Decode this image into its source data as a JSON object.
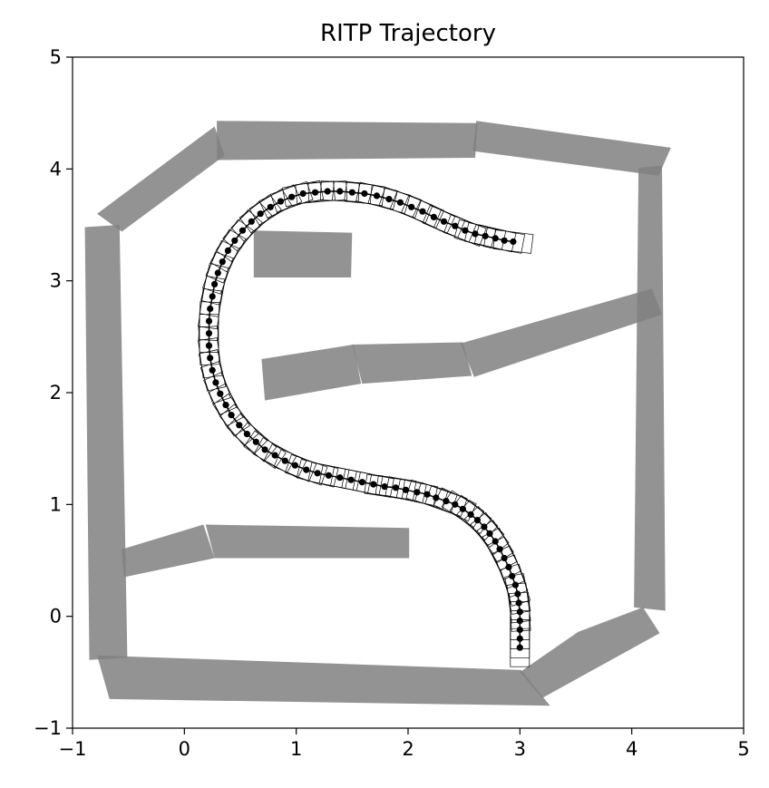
{
  "chart_data": {
    "type": "scatter",
    "title": "RITP Trajectory",
    "xlabel": "",
    "ylabel": "",
    "xlim": [
      -1,
      5
    ],
    "ylim": [
      -1,
      5
    ],
    "x_ticks": [
      "−1",
      "0",
      "1",
      "2",
      "3",
      "4",
      "5"
    ],
    "y_ticks": [
      "−1",
      "0",
      "1",
      "2",
      "3",
      "4",
      "5"
    ],
    "grid": false,
    "legend": "none",
    "obstacle_color": "#808080",
    "obstacles": [
      [
        [
          -0.89,
          3.48
        ],
        [
          -0.58,
          3.5
        ],
        [
          -0.51,
          -0.37
        ],
        [
          -0.85,
          -0.39
        ]
      ],
      [
        [
          -0.78,
          -0.35
        ],
        [
          3.01,
          -0.48
        ],
        [
          3.27,
          -0.8
        ],
        [
          -0.67,
          -0.74
        ]
      ],
      [
        [
          -0.78,
          3.6
        ],
        [
          0.27,
          4.38
        ],
        [
          0.36,
          4.12
        ],
        [
          -0.56,
          3.44
        ]
      ],
      [
        [
          0.29,
          4.43
        ],
        [
          2.62,
          4.41
        ],
        [
          2.6,
          4.1
        ],
        [
          0.29,
          4.08
        ]
      ],
      [
        [
          2.61,
          4.43
        ],
        [
          4.35,
          4.19
        ],
        [
          4.24,
          3.94
        ],
        [
          2.58,
          4.16
        ]
      ],
      [
        [
          4.06,
          4.01
        ],
        [
          4.27,
          4.03
        ],
        [
          4.3,
          0.05
        ],
        [
          4.02,
          0.08
        ]
      ],
      [
        [
          3.0,
          -0.5
        ],
        [
          3.2,
          -0.73
        ],
        [
          4.25,
          -0.15
        ],
        [
          4.1,
          0.08
        ],
        [
          3.52,
          -0.14
        ]
      ],
      [
        [
          0.62,
          3.45
        ],
        [
          1.5,
          3.43
        ],
        [
          1.49,
          3.03
        ],
        [
          0.62,
          3.03
        ]
      ],
      [
        [
          0.69,
          2.3
        ],
        [
          1.51,
          2.43
        ],
        [
          1.58,
          2.08
        ],
        [
          0.72,
          1.93
        ]
      ],
      [
        [
          1.5,
          2.43
        ],
        [
          2.49,
          2.45
        ],
        [
          2.57,
          2.15
        ],
        [
          1.59,
          2.08
        ]
      ],
      [
        [
          2.47,
          2.44
        ],
        [
          4.18,
          2.93
        ],
        [
          4.27,
          2.7
        ],
        [
          2.59,
          2.14
        ]
      ],
      [
        [
          -0.56,
          0.6
        ],
        [
          0.17,
          0.82
        ],
        [
          0.27,
          0.52
        ],
        [
          -0.54,
          0.35
        ]
      ],
      [
        [
          0.19,
          0.82
        ],
        [
          2.01,
          0.79
        ],
        [
          2.01,
          0.52
        ],
        [
          0.27,
          0.52
        ]
      ]
    ],
    "series": [
      {
        "points": [
          [
            3.0,
            -0.28
          ],
          [
            3.0,
            -0.2
          ],
          [
            3.0,
            -0.12
          ],
          [
            3.0,
            -0.04
          ],
          [
            3.0,
            0.04
          ],
          [
            2.99,
            0.12
          ],
          [
            2.98,
            0.2
          ],
          [
            2.96,
            0.28
          ],
          [
            2.93,
            0.36
          ],
          [
            2.9,
            0.44
          ],
          [
            2.86,
            0.52
          ],
          [
            2.82,
            0.6
          ],
          [
            2.78,
            0.67
          ],
          [
            2.73,
            0.74
          ],
          [
            2.68,
            0.8
          ],
          [
            2.62,
            0.86
          ],
          [
            2.56,
            0.91
          ],
          [
            2.49,
            0.96
          ],
          [
            2.42,
            1.0
          ],
          [
            2.34,
            1.03
          ],
          [
            2.25,
            1.06
          ],
          [
            2.17,
            1.09
          ],
          [
            2.08,
            1.11
          ],
          [
            1.98,
            1.13
          ],
          [
            1.89,
            1.15
          ],
          [
            1.79,
            1.16
          ],
          [
            1.69,
            1.18
          ],
          [
            1.59,
            1.2
          ],
          [
            1.49,
            1.22
          ],
          [
            1.39,
            1.24
          ],
          [
            1.29,
            1.26
          ],
          [
            1.19,
            1.28
          ],
          [
            1.09,
            1.31
          ],
          [
            0.99,
            1.35
          ],
          [
            0.9,
            1.39
          ],
          [
            0.81,
            1.44
          ],
          [
            0.72,
            1.49
          ],
          [
            0.64,
            1.56
          ],
          [
            0.56,
            1.63
          ],
          [
            0.49,
            1.71
          ],
          [
            0.42,
            1.8
          ],
          [
            0.37,
            1.89
          ],
          [
            0.32,
            1.99
          ],
          [
            0.28,
            2.09
          ],
          [
            0.25,
            2.2
          ],
          [
            0.23,
            2.31
          ],
          [
            0.22,
            2.42
          ],
          [
            0.22,
            2.53
          ],
          [
            0.22,
            2.64
          ],
          [
            0.23,
            2.75
          ],
          [
            0.25,
            2.86
          ],
          [
            0.27,
            2.97
          ],
          [
            0.3,
            3.07
          ],
          [
            0.34,
            3.17
          ],
          [
            0.39,
            3.27
          ],
          [
            0.45,
            3.36
          ],
          [
            0.52,
            3.45
          ],
          [
            0.6,
            3.53
          ],
          [
            0.68,
            3.6
          ],
          [
            0.77,
            3.66
          ],
          [
            0.86,
            3.71
          ],
          [
            0.96,
            3.75
          ],
          [
            1.06,
            3.78
          ],
          [
            1.17,
            3.79
          ],
          [
            1.28,
            3.8
          ],
          [
            1.39,
            3.8
          ],
          [
            1.5,
            3.79
          ],
          [
            1.61,
            3.78
          ],
          [
            1.72,
            3.76
          ],
          [
            1.83,
            3.73
          ],
          [
            1.93,
            3.7
          ],
          [
            2.03,
            3.66
          ],
          [
            2.13,
            3.62
          ],
          [
            2.23,
            3.57
          ],
          [
            2.32,
            3.53
          ],
          [
            2.42,
            3.49
          ],
          [
            2.51,
            3.45
          ],
          [
            2.6,
            3.42
          ],
          [
            2.69,
            3.4
          ],
          [
            2.78,
            3.38
          ],
          [
            2.86,
            3.36
          ],
          [
            2.94,
            3.35
          ]
        ]
      }
    ]
  }
}
